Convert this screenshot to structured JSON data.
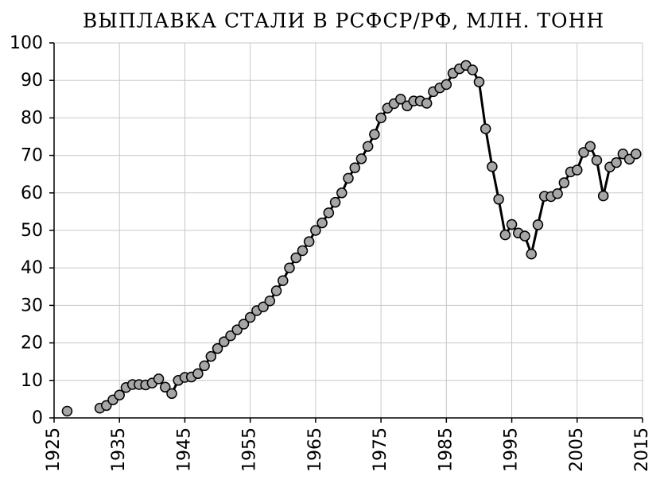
{
  "chart_data": {
    "type": "line",
    "title": "ВЫПЛАВКА СТАЛИ В РСФСР/РФ, МЛН. ТОНН",
    "x": [
      1927,
      1928,
      1929,
      1930,
      1931,
      1932,
      1933,
      1934,
      1935,
      1936,
      1937,
      1938,
      1939,
      1940,
      1941,
      1942,
      1943,
      1944,
      1945,
      1946,
      1947,
      1948,
      1949,
      1950,
      1951,
      1952,
      1953,
      1954,
      1955,
      1956,
      1957,
      1958,
      1959,
      1960,
      1961,
      1962,
      1963,
      1964,
      1965,
      1966,
      1967,
      1968,
      1969,
      1970,
      1971,
      1972,
      1973,
      1974,
      1975,
      1976,
      1977,
      1978,
      1979,
      1980,
      1981,
      1982,
      1983,
      1984,
      1985,
      1986,
      1987,
      1988,
      1989,
      1990,
      1991,
      1992,
      1993,
      1994,
      1995,
      1996,
      1997,
      1998,
      1999,
      2000,
      2001,
      2002,
      2003,
      2004,
      2005,
      2006,
      2007,
      2008,
      2009,
      2010,
      2011,
      2012,
      2013,
      2014
    ],
    "values": [
      1.8,
      null,
      null,
      null,
      null,
      2.6,
      3.3,
      4.8,
      6.1,
      8.1,
      8.9,
      8.9,
      8.8,
      9.3,
      10.4,
      8.2,
      6.5,
      10.0,
      10.8,
      10.9,
      11.8,
      13.9,
      16.4,
      18.5,
      20.3,
      21.9,
      23.5,
      25.0,
      26.8,
      28.6,
      29.6,
      31.2,
      33.9,
      36.6,
      40.0,
      42.7,
      44.6,
      47.0,
      50.0,
      52.0,
      54.7,
      57.5,
      60.0,
      63.9,
      66.7,
      69.1,
      72.4,
      75.6,
      80.0,
      82.6,
      83.8,
      85.0,
      83.2,
      84.5,
      84.5,
      83.9,
      87.0,
      88.0,
      88.9,
      91.9,
      93.1,
      94.0,
      92.8,
      89.6,
      77.1,
      67.0,
      58.3,
      48.8,
      51.6,
      49.3,
      48.5,
      43.7,
      51.5,
      59.1,
      59.0,
      59.8,
      62.7,
      65.6,
      66.1,
      70.8,
      72.4,
      68.7,
      59.2,
      66.9,
      68.1,
      70.4,
      69.0,
      70.4
    ],
    "color": "#000000",
    "marker_color": "#a6a6a6",
    "xlim": [
      1925,
      2015
    ],
    "xticks": [
      1925,
      1935,
      1945,
      1955,
      1965,
      1975,
      1985,
      1995,
      2005,
      2015
    ],
    "ylim": [
      0,
      100
    ],
    "yticks": [
      0,
      10,
      20,
      30,
      40,
      50,
      60,
      70,
      80,
      90,
      100
    ],
    "grid": true
  }
}
